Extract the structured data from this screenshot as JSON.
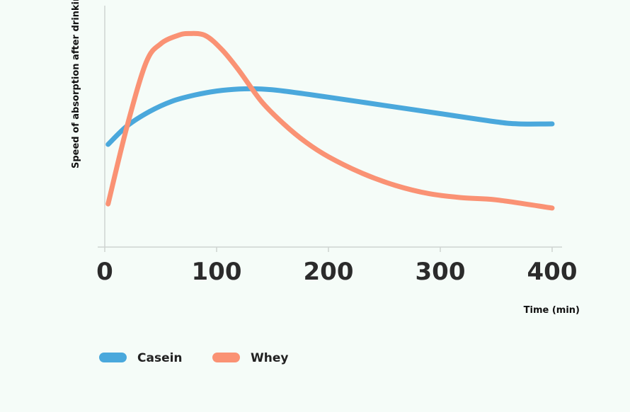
{
  "chart_data": {
    "type": "line",
    "xlabel": "Time (min)",
    "ylabel": "Speed of absorption after drinking",
    "xlim": [
      0,
      400
    ],
    "x_ticks": [
      "0",
      "100",
      "200",
      "300",
      "400"
    ],
    "ylim": [
      0,
      10
    ],
    "grid": false,
    "legend_position": "bottom-left",
    "series": [
      {
        "name": "Casein",
        "color": "#4aa8dc",
        "points": [
          [
            3,
            4.0
          ],
          [
            20,
            4.9
          ],
          [
            40,
            5.6
          ],
          [
            60,
            6.1
          ],
          [
            80,
            6.4
          ],
          [
            100,
            6.6
          ],
          [
            120,
            6.7
          ],
          [
            140,
            6.7
          ],
          [
            160,
            6.6
          ],
          [
            200,
            6.3
          ],
          [
            250,
            5.9
          ],
          [
            300,
            5.5
          ],
          [
            350,
            5.1
          ],
          [
            370,
            5.0
          ],
          [
            400,
            5.0
          ]
        ]
      },
      {
        "name": "Whey",
        "color": "#fa9274",
        "points": [
          [
            3,
            1.1
          ],
          [
            20,
            4.9
          ],
          [
            37,
            8.0
          ],
          [
            50,
            8.9
          ],
          [
            65,
            9.3
          ],
          [
            75,
            9.4
          ],
          [
            90,
            9.3
          ],
          [
            105,
            8.6
          ],
          [
            120,
            7.6
          ],
          [
            140,
            6.1
          ],
          [
            160,
            5.0
          ],
          [
            180,
            4.1
          ],
          [
            200,
            3.4
          ],
          [
            230,
            2.6
          ],
          [
            260,
            2.0
          ],
          [
            290,
            1.6
          ],
          [
            320,
            1.4
          ],
          [
            350,
            1.3
          ],
          [
            400,
            0.9
          ]
        ]
      }
    ]
  }
}
